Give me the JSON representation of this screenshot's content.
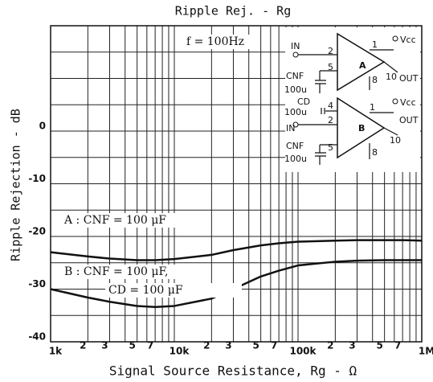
{
  "chart_data": {
    "type": "line",
    "title": "Ripple Rej. - Rg",
    "ylabel": "Ripple Rejection - dB",
    "xlabel": "Signal Source Resistance, Rg - Ω",
    "log_x": true,
    "xlim": [
      1000,
      1000000
    ],
    "ylim": [
      -40,
      20
    ],
    "yticks": [
      -40,
      -30,
      -20,
      -10,
      0
    ],
    "ygrid": [
      -40,
      -35,
      -30,
      -25,
      -20,
      -15,
      -10,
      -5,
      0,
      5,
      10,
      15,
      20
    ],
    "xticks": [
      {
        "value": 1000,
        "label": "1k"
      },
      {
        "value": 2000,
        "label": "2"
      },
      {
        "value": 3000,
        "label": "3"
      },
      {
        "value": 5000,
        "label": "5"
      },
      {
        "value": 7000,
        "label": "7"
      },
      {
        "value": 10000,
        "label": "10k"
      },
      {
        "value": 20000,
        "label": "2"
      },
      {
        "value": 30000,
        "label": "3"
      },
      {
        "value": 50000,
        "label": "5"
      },
      {
        "value": 70000,
        "label": "7"
      },
      {
        "value": 100000,
        "label": "100k"
      },
      {
        "value": 200000,
        "label": "2"
      },
      {
        "value": 300000,
        "label": "3"
      },
      {
        "value": 500000,
        "label": "5"
      },
      {
        "value": 700000,
        "label": "7"
      },
      {
        "value": 1000000,
        "label": "1M"
      }
    ],
    "xgrid": [
      1000,
      2000,
      3000,
      4000,
      5000,
      6000,
      7000,
      8000,
      9000,
      10000,
      20000,
      30000,
      40000,
      50000,
      60000,
      70000,
      80000,
      90000,
      100000,
      200000,
      300000,
      400000,
      500000,
      600000,
      700000,
      800000,
      900000,
      1000000
    ],
    "grid": true,
    "x": [
      1000,
      2000,
      3000,
      5000,
      7000,
      10000,
      20000,
      30000,
      50000,
      70000,
      100000,
      200000,
      300000,
      500000,
      700000,
      1000000
    ],
    "series": [
      {
        "name": "A",
        "color": "#111111",
        "values": [
          -23,
          -23.8,
          -24.2,
          -24.5,
          -24.5,
          -24.3,
          -23.5,
          -22.6,
          -21.7,
          -21.3,
          -21,
          -20.8,
          -20.7,
          -20.7,
          -20.7,
          -20.8
        ]
      },
      {
        "name": "B",
        "color": "#111111",
        "values": [
          -30,
          -31.6,
          -32.4,
          -33.2,
          -33.4,
          -33.2,
          -31.8,
          -30,
          -27.6,
          -26.5,
          -25.5,
          -24.8,
          -24.6,
          -24.5,
          -24.5,
          -24.5
        ]
      }
    ],
    "annotations": [
      "f = 100Hz",
      "A : CNF = 100 μF",
      "B : CNF = 100 μF,",
      "CD = 100 μF"
    ]
  },
  "inset": {
    "labels": [
      "IN",
      "2",
      "5",
      "A",
      "1",
      "Vcc",
      "10",
      "OUT",
      "8",
      "CNF",
      "100u",
      "CD",
      "100u",
      "4",
      "1",
      "Vcc",
      "IN",
      "2",
      "B",
      "OUT",
      "10",
      "CNF",
      "5",
      "100u",
      "8"
    ]
  }
}
